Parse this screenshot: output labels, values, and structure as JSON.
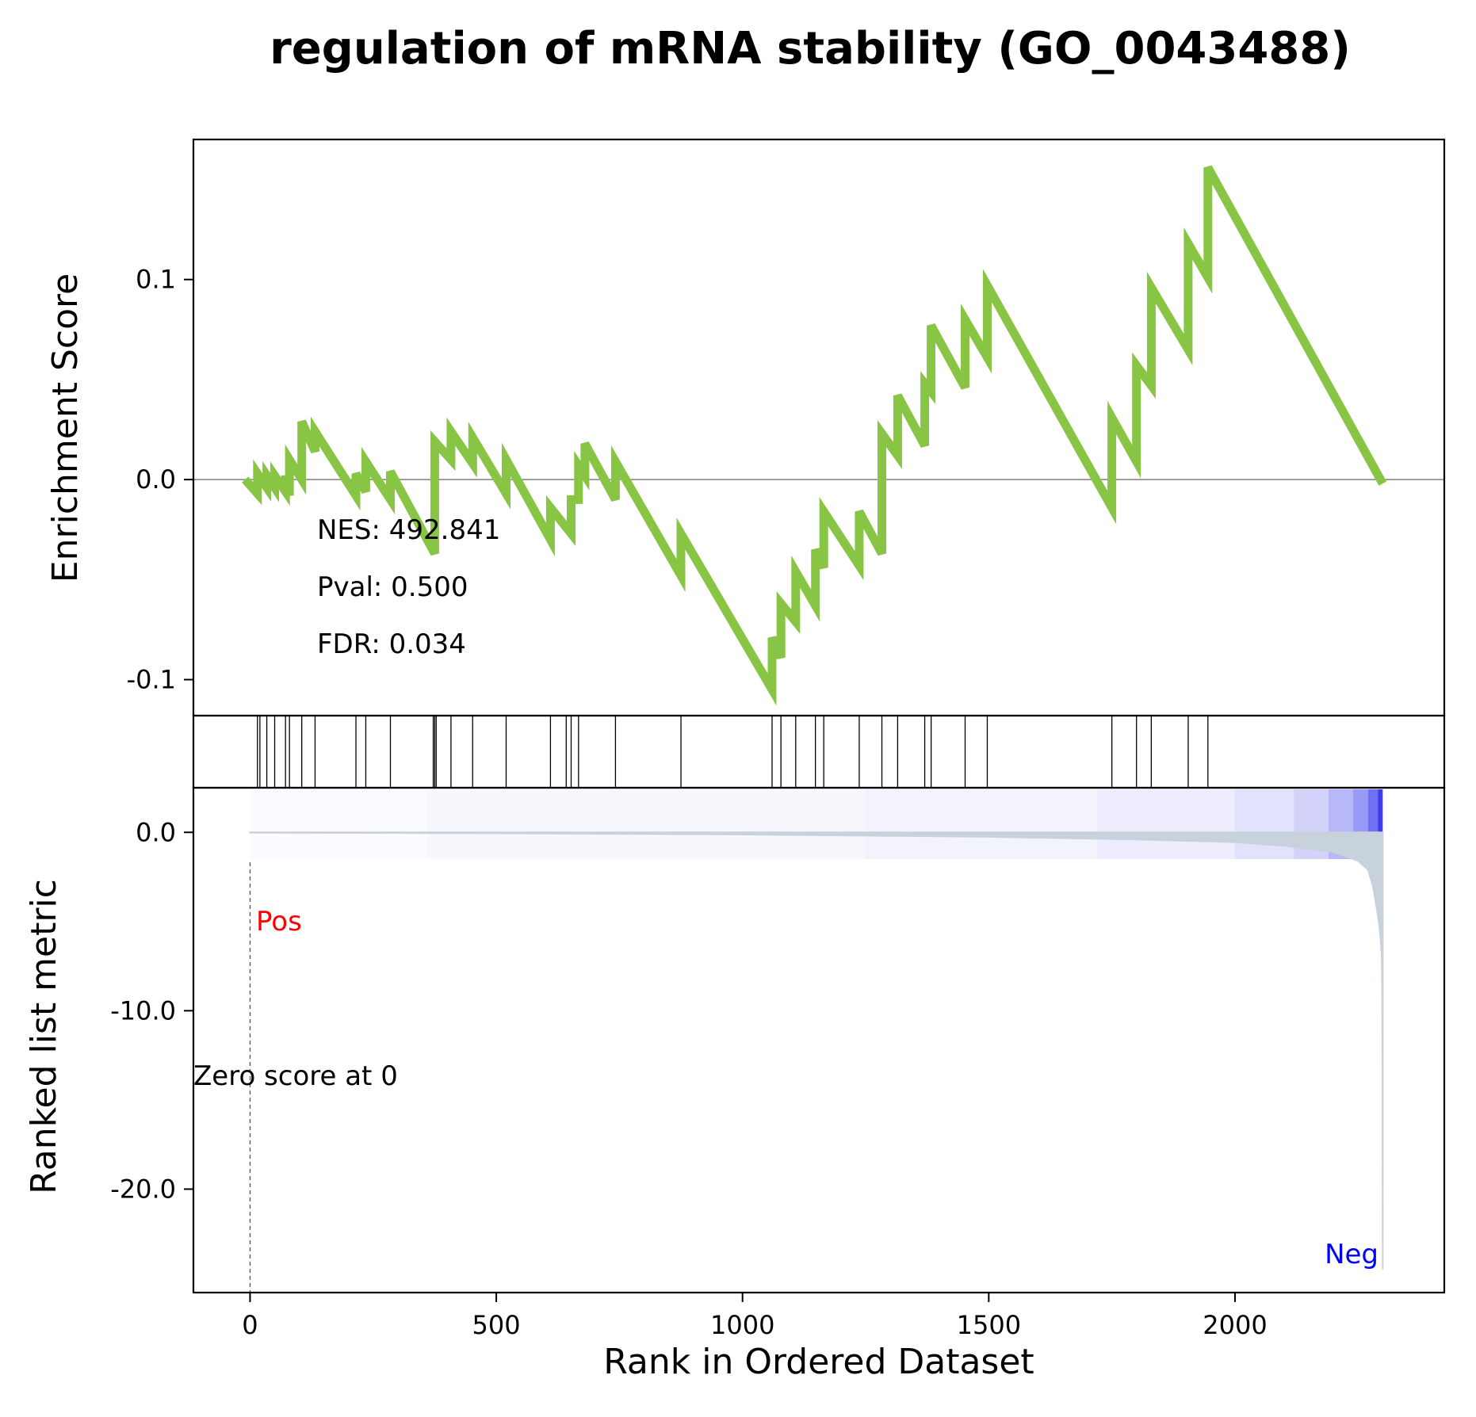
{
  "chart_data": {
    "type": "line",
    "title": "regulation of mRNA stability (GO_0043488)",
    "xlabel": "Rank in Ordered Dataset",
    "xlim": [
      -115,
      2425
    ],
    "x_ticks": [
      0,
      500,
      1000,
      1500,
      2000
    ],
    "x_tick_labels": [
      "0",
      "500",
      "1000",
      "1500",
      "2000"
    ],
    "enrichment": {
      "ylabel": "Enrichment Score",
      "ylim": [
        -0.118,
        0.17
      ],
      "y_ticks": [
        -0.1,
        0.0,
        0.1
      ],
      "y_tick_labels": [
        "-0.1",
        "0.0",
        "0.1"
      ],
      "line_color": "#88c544",
      "zero_line_color": "#808080",
      "points": [
        [
          -10,
          0.0
        ],
        [
          15,
          -0.007
        ],
        [
          15,
          0.003
        ],
        [
          34,
          -0.004
        ],
        [
          34,
          0.002
        ],
        [
          50,
          -0.004
        ],
        [
          50,
          0.002
        ],
        [
          72,
          -0.006
        ],
        [
          72,
          0.002
        ],
        [
          80,
          -0.008
        ],
        [
          80,
          0.01
        ],
        [
          105,
          0.0
        ],
        [
          105,
          0.029
        ],
        [
          132,
          0.014
        ],
        [
          132,
          0.024
        ],
        [
          215,
          -0.008
        ],
        [
          215,
          0.003
        ],
        [
          235,
          -0.006
        ],
        [
          235,
          0.009
        ],
        [
          285,
          -0.01
        ],
        [
          285,
          0.004
        ],
        [
          375,
          -0.037
        ],
        [
          375,
          0.019
        ],
        [
          408,
          0.01
        ],
        [
          408,
          0.024
        ],
        [
          452,
          0.008
        ],
        [
          452,
          0.021
        ],
        [
          520,
          -0.007
        ],
        [
          520,
          0.01
        ],
        [
          610,
          -0.03
        ],
        [
          610,
          -0.014
        ],
        [
          652,
          -0.027
        ],
        [
          652,
          -0.01
        ],
        [
          667,
          -0.01
        ],
        [
          667,
          0.007
        ],
        [
          680,
          0.002
        ],
        [
          680,
          0.018
        ],
        [
          742,
          -0.01
        ],
        [
          742,
          0.009
        ],
        [
          875,
          -0.048
        ],
        [
          875,
          -0.027
        ],
        [
          1060,
          -0.105
        ],
        [
          1060,
          -0.079
        ],
        [
          1078,
          -0.089
        ],
        [
          1078,
          -0.062
        ],
        [
          1108,
          -0.071
        ],
        [
          1108,
          -0.046
        ],
        [
          1148,
          -0.063
        ],
        [
          1148,
          -0.035
        ],
        [
          1165,
          -0.044
        ],
        [
          1165,
          -0.016
        ],
        [
          1237,
          -0.043
        ],
        [
          1237,
          -0.016
        ],
        [
          1283,
          -0.037
        ],
        [
          1283,
          0.023
        ],
        [
          1315,
          0.012
        ],
        [
          1315,
          0.042
        ],
        [
          1370,
          0.017
        ],
        [
          1370,
          0.048
        ],
        [
          1383,
          0.044
        ],
        [
          1383,
          0.077
        ],
        [
          1452,
          0.046
        ],
        [
          1452,
          0.08
        ],
        [
          1497,
          0.061
        ],
        [
          1497,
          0.097
        ],
        [
          1750,
          -0.014
        ],
        [
          1750,
          0.031
        ],
        [
          1800,
          0.009
        ],
        [
          1800,
          0.057
        ],
        [
          1830,
          0.047
        ],
        [
          1830,
          0.096
        ],
        [
          1905,
          0.065
        ],
        [
          1905,
          0.118
        ],
        [
          1945,
          0.101
        ],
        [
          1945,
          0.156
        ],
        [
          2300,
          -0.002
        ]
      ],
      "hits": [
        15,
        20,
        34,
        50,
        72,
        80,
        105,
        132,
        215,
        235,
        285,
        372,
        375,
        378,
        408,
        452,
        520,
        610,
        642,
        652,
        667,
        742,
        875,
        1060,
        1078,
        1108,
        1148,
        1165,
        1237,
        1283,
        1315,
        1370,
        1383,
        1452,
        1497,
        1750,
        1800,
        1830,
        1905,
        1945
      ]
    },
    "ranked": {
      "ylabel": "Ranked list metric",
      "ylim": [
        -25.8,
        2.5
      ],
      "y_ticks": [
        0.0,
        -10.0,
        -20.0
      ],
      "y_tick_labels": [
        "0.0",
        "-10.0",
        "-20.0"
      ],
      "fill_color": "#c8d2dc",
      "n": 2300,
      "profile": [
        [
          0,
          -0.02
        ],
        [
          500,
          -0.05
        ],
        [
          1000,
          -0.12
        ],
        [
          1500,
          -0.25
        ],
        [
          1800,
          -0.4
        ],
        [
          2000,
          -0.55
        ],
        [
          2100,
          -0.75
        ],
        [
          2200,
          -1.1
        ],
        [
          2250,
          -1.6
        ],
        [
          2270,
          -2.1
        ],
        [
          2280,
          -3.0
        ],
        [
          2288,
          -4.3
        ],
        [
          2292,
          -5.0
        ],
        [
          2295,
          -5.7
        ],
        [
          2298,
          -7.0
        ],
        [
          2299,
          -9.0
        ],
        [
          2300,
          -24.5
        ]
      ],
      "heatmap_color": "#3333ee",
      "heat_segments": [
        [
          0,
          360,
          0.02
        ],
        [
          360,
          1250,
          0.04
        ],
        [
          1250,
          1720,
          0.06
        ],
        [
          1720,
          2000,
          0.09
        ],
        [
          2000,
          2120,
          0.14
        ],
        [
          2120,
          2190,
          0.22
        ],
        [
          2190,
          2240,
          0.35
        ],
        [
          2240,
          2270,
          0.5
        ],
        [
          2270,
          2290,
          0.7
        ],
        [
          2290,
          2300,
          0.95
        ]
      ],
      "pos_label": "Pos",
      "pos_color": "#ff0000",
      "neg_label": "Neg",
      "neg_color": "#0000ff",
      "zero_score_text": "Zero score at 0",
      "zero_rank": 0
    },
    "stats": {
      "nes": "NES: 492.841",
      "pval": "Pval: 0.500",
      "fdr": "FDR: 0.034"
    }
  }
}
